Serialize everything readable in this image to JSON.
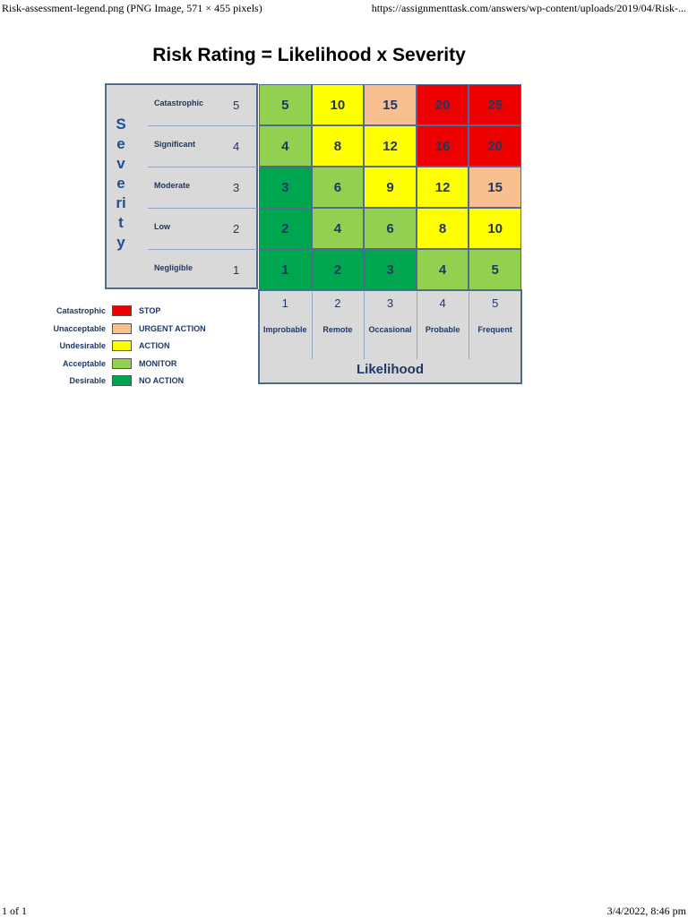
{
  "header": {
    "title": "Risk-assessment-legend.png (PNG Image, 571 × 455 pixels)",
    "url": "https://assignmenttask.com/answers/wp-content/uploads/2019/04/Risk-..."
  },
  "figure": {
    "title": "Risk Rating = Likelihood x Severity",
    "severity": {
      "label": "Severity",
      "levels": [
        {
          "name": "Catastrophic",
          "score": 5
        },
        {
          "name": "Significant",
          "score": 4
        },
        {
          "name": "Moderate",
          "score": 3
        },
        {
          "name": "Low",
          "score": 2
        },
        {
          "name": "Negligible",
          "score": 1
        }
      ]
    },
    "likelihood": {
      "label": "Likelihood",
      "levels": [
        {
          "score": 1,
          "name": "Improbable"
        },
        {
          "score": 2,
          "name": "Remote"
        },
        {
          "score": 3,
          "name": "Occasional"
        },
        {
          "score": 4,
          "name": "Probable"
        },
        {
          "score": 5,
          "name": "Frequent"
        }
      ]
    },
    "matrix": {
      "rows": [
        [
          {
            "value": 5,
            "color": "#92d050"
          },
          {
            "value": 10,
            "color": "#ffff00"
          },
          {
            "value": 15,
            "color": "#f8c090"
          },
          {
            "value": 20,
            "color": "#ee0000"
          },
          {
            "value": 25,
            "color": "#ee0000"
          }
        ],
        [
          {
            "value": 4,
            "color": "#92d050"
          },
          {
            "value": 8,
            "color": "#ffff00"
          },
          {
            "value": 12,
            "color": "#ffff00"
          },
          {
            "value": 16,
            "color": "#ee0000"
          },
          {
            "value": 20,
            "color": "#ee0000"
          }
        ],
        [
          {
            "value": 3,
            "color": "#00a550"
          },
          {
            "value": 6,
            "color": "#92d050"
          },
          {
            "value": 9,
            "color": "#ffff00"
          },
          {
            "value": 12,
            "color": "#ffff00"
          },
          {
            "value": 15,
            "color": "#f8c090"
          }
        ],
        [
          {
            "value": 2,
            "color": "#00a550"
          },
          {
            "value": 4,
            "color": "#92d050"
          },
          {
            "value": 6,
            "color": "#92d050"
          },
          {
            "value": 8,
            "color": "#ffff00"
          },
          {
            "value": 10,
            "color": "#ffff00"
          }
        ],
        [
          {
            "value": 1,
            "color": "#00a550"
          },
          {
            "value": 2,
            "color": "#00a550"
          },
          {
            "value": 3,
            "color": "#00a550"
          },
          {
            "value": 4,
            "color": "#92d050"
          },
          {
            "value": 5,
            "color": "#92d050"
          }
        ]
      ]
    },
    "legend": [
      {
        "rating": "Catastrophic",
        "action": "STOP",
        "color": "#ee0000"
      },
      {
        "rating": "Unacceptable",
        "action": "URGENT ACTION",
        "color": "#f8c090"
      },
      {
        "rating": "Undesirable",
        "action": "ACTION",
        "color": "#ffff00"
      },
      {
        "rating": "Acceptable",
        "action": "MONITOR",
        "color": "#92d050"
      },
      {
        "rating": "Desirable",
        "action": "NO ACTION",
        "color": "#00a550"
      }
    ]
  },
  "footer": {
    "page": "1 of 1",
    "date": "3/4/2022, 8:46 pm"
  }
}
